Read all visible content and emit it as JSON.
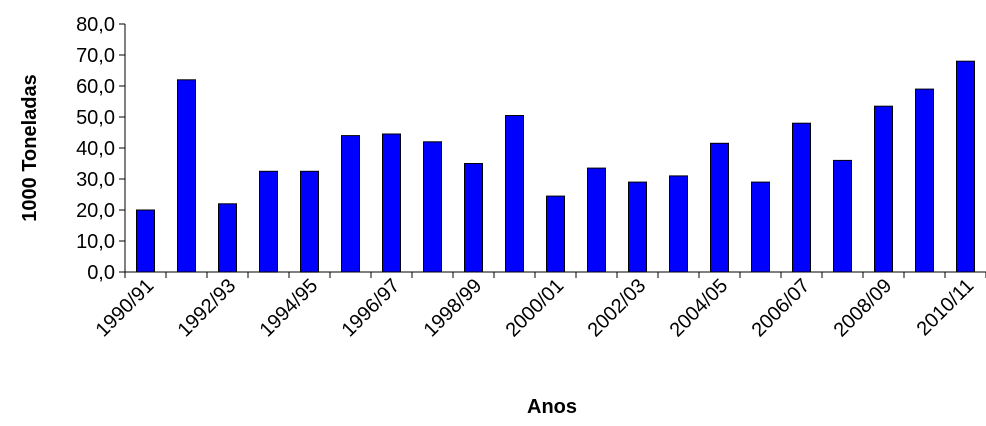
{
  "chart_data": {
    "type": "bar",
    "xlabel": "Anos",
    "ylabel": "1000 Toneladas",
    "ylim": [
      0,
      80
    ],
    "yticks": [
      0,
      10,
      20,
      30,
      40,
      50,
      60,
      70,
      80
    ],
    "ytick_labels": [
      "0,0",
      "10,0",
      "20,0",
      "30,0",
      "40,0",
      "50,0",
      "60,0",
      "70,0",
      "80,0"
    ],
    "categories": [
      "1990/91",
      "1991/92",
      "1992/93",
      "1993/94",
      "1994/95",
      "1995/96",
      "1996/97",
      "1997/98",
      "1998/99",
      "1999/00",
      "2000/01",
      "2001/02",
      "2002/03",
      "2003/04",
      "2004/05",
      "2005/06",
      "2006/07",
      "2007/08",
      "2008/09",
      "2009/10",
      "2010/11"
    ],
    "xtick_labels": [
      "1990/91",
      "1992/93",
      "1994/95",
      "1996/97",
      "1998/99",
      "2000/01",
      "2002/03",
      "2004/05",
      "2006/07",
      "2008/09",
      "2010/11"
    ],
    "values": [
      20.0,
      62.0,
      22.0,
      32.5,
      32.5,
      44.0,
      44.5,
      42.0,
      35.0,
      50.5,
      24.5,
      33.5,
      29.0,
      31.0,
      41.5,
      29.0,
      48.0,
      36.0,
      53.5,
      59.0,
      68.0
    ],
    "bar_color": "#0000FF",
    "bar_edge_color": "#000000",
    "grid": false,
    "legend": "none"
  }
}
